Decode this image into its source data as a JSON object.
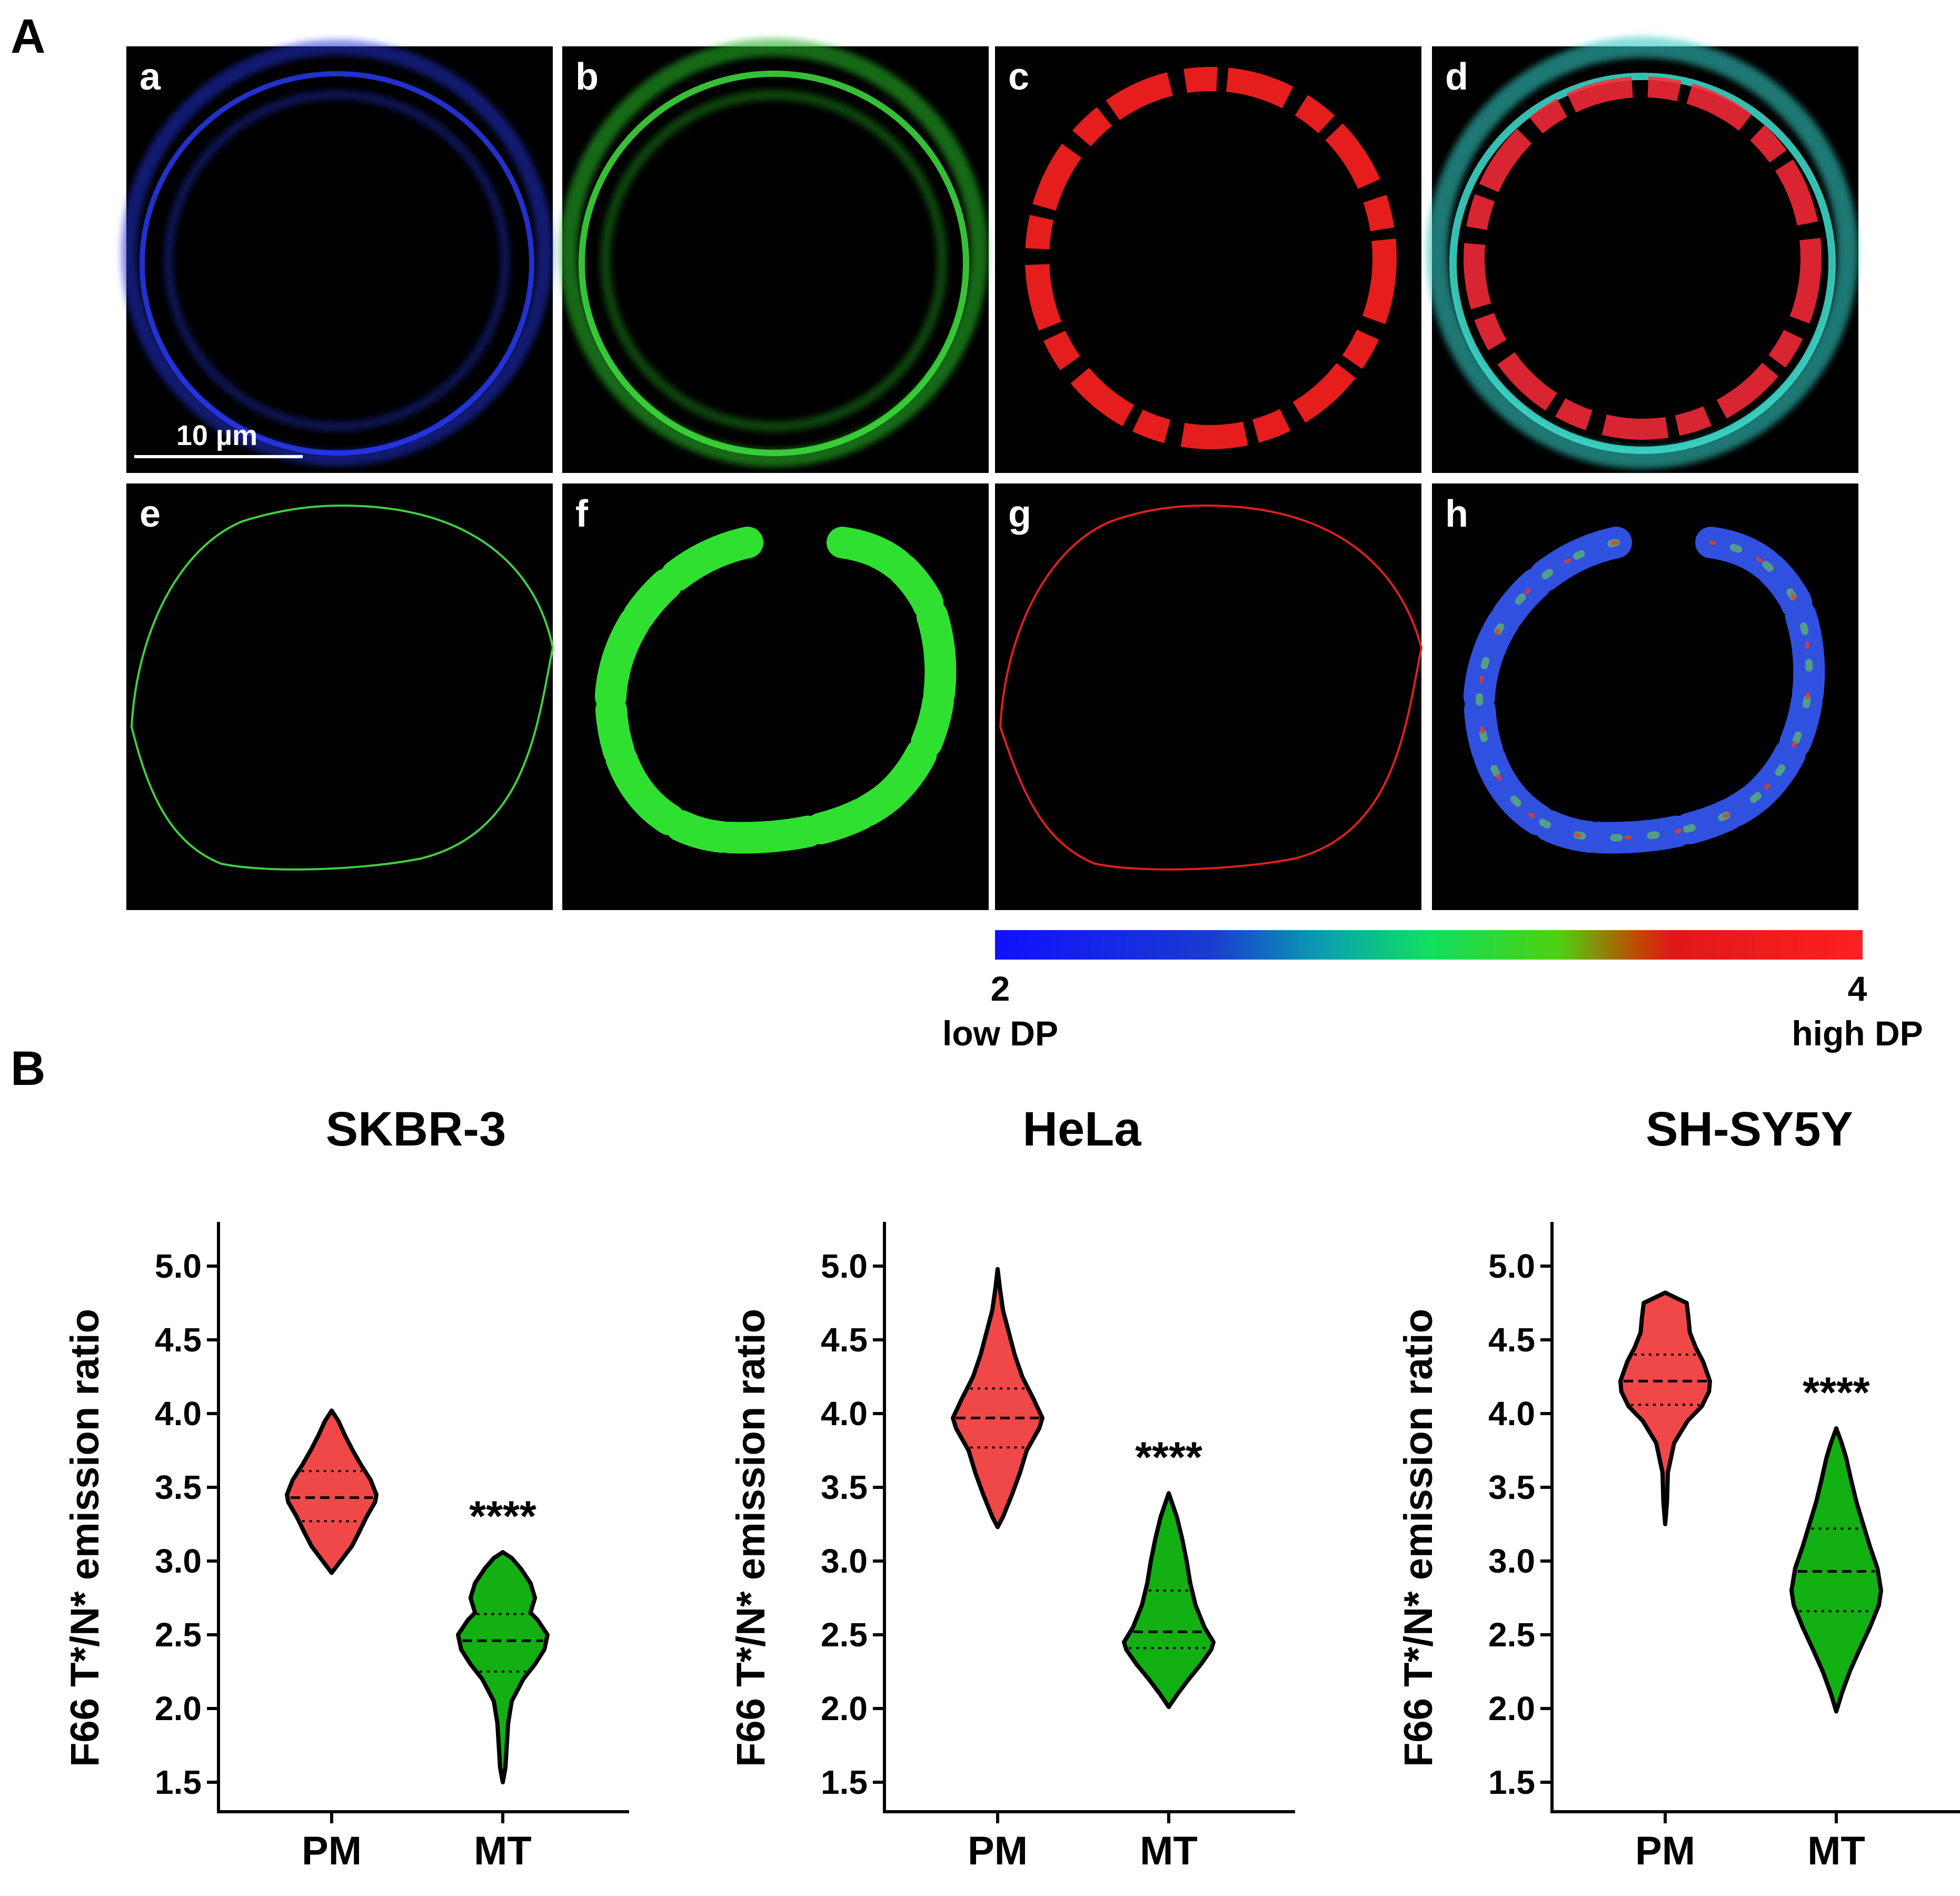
{
  "panel_a": {
    "label": "A",
    "subpanels": [
      "a",
      "b",
      "c",
      "d",
      "e",
      "f",
      "g",
      "h"
    ],
    "scale_bar": "10 µm",
    "colorbar": {
      "min_value": "2",
      "min_label": "low DP",
      "max_value": "4",
      "max_label": "high DP",
      "colors": [
        "#1010ff",
        "#1a3cd0",
        "#0aa0b0",
        "#10e060",
        "#50d010",
        "#c04a00",
        "#e01818",
        "#ff2020"
      ]
    },
    "colors": {
      "blue": "#2a3cff",
      "green": "#32d030",
      "red": "#ff2020",
      "cyan": "#30c8c0"
    }
  },
  "panel_b": {
    "label": "B",
    "ylabel": "F66 T*/N* emission ratio",
    "significance": "****",
    "colors": {
      "PM": "#f04848",
      "MT": "#12b012"
    }
  },
  "chart_data": [
    {
      "type": "violin",
      "title": "SKBR-3",
      "categories": [
        "PM",
        "MT"
      ],
      "ylabel": "F66 T*/N* emission ratio",
      "ylim": [
        1.3,
        5.3
      ],
      "yticks": [
        "1.5",
        "2.0",
        "2.5",
        "3.0",
        "3.5",
        "4.0",
        "4.5",
        "5.0"
      ],
      "annotation": "****",
      "series": [
        {
          "name": "PM",
          "min": 2.92,
          "max": 4.02,
          "median": 3.43,
          "q1": 3.27,
          "q3": 3.61,
          "profile": [
            [
              2.92,
              0.0
            ],
            [
              3.0,
              0.2
            ],
            [
              3.1,
              0.45
            ],
            [
              3.2,
              0.62
            ],
            [
              3.3,
              0.78
            ],
            [
              3.4,
              0.97
            ],
            [
              3.45,
              1.0
            ],
            [
              3.55,
              0.87
            ],
            [
              3.65,
              0.66
            ],
            [
              3.75,
              0.47
            ],
            [
              3.85,
              0.3
            ],
            [
              3.95,
              0.15
            ],
            [
              4.02,
              0.0
            ]
          ]
        },
        {
          "name": "MT",
          "min": 1.5,
          "max": 3.06,
          "median": 2.46,
          "q1": 2.25,
          "q3": 2.64,
          "profile": [
            [
              1.5,
              0.0
            ],
            [
              1.6,
              0.06
            ],
            [
              1.75,
              0.09
            ],
            [
              1.9,
              0.12
            ],
            [
              2.05,
              0.2
            ],
            [
              2.2,
              0.46
            ],
            [
              2.3,
              0.72
            ],
            [
              2.4,
              0.93
            ],
            [
              2.5,
              1.0
            ],
            [
              2.6,
              0.78
            ],
            [
              2.65,
              0.62
            ],
            [
              2.75,
              0.72
            ],
            [
              2.85,
              0.62
            ],
            [
              2.95,
              0.4
            ],
            [
              3.02,
              0.2
            ],
            [
              3.06,
              0.0
            ]
          ]
        }
      ]
    },
    {
      "type": "violin",
      "title": "HeLa",
      "categories": [
        "PM",
        "MT"
      ],
      "ylabel": "F66 T*/N* emission ratio",
      "ylim": [
        1.3,
        5.3
      ],
      "yticks": [
        "1.5",
        "2.0",
        "2.5",
        "3.0",
        "3.5",
        "4.0",
        "4.5",
        "5.0"
      ],
      "annotation": "****",
      "series": [
        {
          "name": "PM",
          "min": 3.23,
          "max": 4.98,
          "median": 3.97,
          "q1": 3.77,
          "q3": 4.17,
          "profile": [
            [
              3.23,
              0.0
            ],
            [
              3.3,
              0.12
            ],
            [
              3.45,
              0.32
            ],
            [
              3.6,
              0.5
            ],
            [
              3.75,
              0.65
            ],
            [
              3.9,
              0.93
            ],
            [
              3.97,
              1.0
            ],
            [
              4.1,
              0.8
            ],
            [
              4.25,
              0.55
            ],
            [
              4.4,
              0.38
            ],
            [
              4.55,
              0.25
            ],
            [
              4.7,
              0.12
            ],
            [
              4.85,
              0.05
            ],
            [
              4.98,
              0.0
            ]
          ]
        },
        {
          "name": "MT",
          "min": 2.01,
          "max": 3.46,
          "median": 2.52,
          "q1": 2.41,
          "q3": 2.8,
          "profile": [
            [
              2.01,
              0.0
            ],
            [
              2.1,
              0.2
            ],
            [
              2.2,
              0.45
            ],
            [
              2.3,
              0.72
            ],
            [
              2.4,
              0.95
            ],
            [
              2.45,
              1.0
            ],
            [
              2.55,
              0.8
            ],
            [
              2.7,
              0.6
            ],
            [
              2.85,
              0.48
            ],
            [
              3.0,
              0.4
            ],
            [
              3.15,
              0.3
            ],
            [
              3.3,
              0.18
            ],
            [
              3.46,
              0.0
            ]
          ]
        }
      ]
    },
    {
      "type": "violin",
      "title": "SH-SY5Y",
      "categories": [
        "PM",
        "MT"
      ],
      "ylabel": "F66 T*/N* emission ratio",
      "ylim": [
        1.3,
        5.3
      ],
      "yticks": [
        "1.5",
        "2.0",
        "2.5",
        "3.0",
        "3.5",
        "4.0",
        "4.5",
        "5.0"
      ],
      "annotation": "****",
      "series": [
        {
          "name": "PM",
          "min": 3.25,
          "max": 4.82,
          "median": 4.22,
          "q1": 4.06,
          "q3": 4.4,
          "profile": [
            [
              3.25,
              0.0
            ],
            [
              3.4,
              0.04
            ],
            [
              3.6,
              0.06
            ],
            [
              3.8,
              0.2
            ],
            [
              3.95,
              0.5
            ],
            [
              4.05,
              0.82
            ],
            [
              4.15,
              0.98
            ],
            [
              4.22,
              1.0
            ],
            [
              4.35,
              0.85
            ],
            [
              4.45,
              0.68
            ],
            [
              4.55,
              0.55
            ],
            [
              4.65,
              0.52
            ],
            [
              4.75,
              0.48
            ],
            [
              4.82,
              0.0
            ]
          ]
        },
        {
          "name": "MT",
          "min": 1.98,
          "max": 3.9,
          "median": 2.93,
          "q1": 2.66,
          "q3": 3.22,
          "profile": [
            [
              1.98,
              0.0
            ],
            [
              2.1,
              0.12
            ],
            [
              2.25,
              0.3
            ],
            [
              2.4,
              0.52
            ],
            [
              2.55,
              0.75
            ],
            [
              2.7,
              0.95
            ],
            [
              2.8,
              1.0
            ],
            [
              2.95,
              0.92
            ],
            [
              3.1,
              0.75
            ],
            [
              3.25,
              0.6
            ],
            [
              3.4,
              0.45
            ],
            [
              3.55,
              0.33
            ],
            [
              3.7,
              0.22
            ],
            [
              3.8,
              0.12
            ],
            [
              3.9,
              0.0
            ]
          ]
        }
      ]
    }
  ]
}
